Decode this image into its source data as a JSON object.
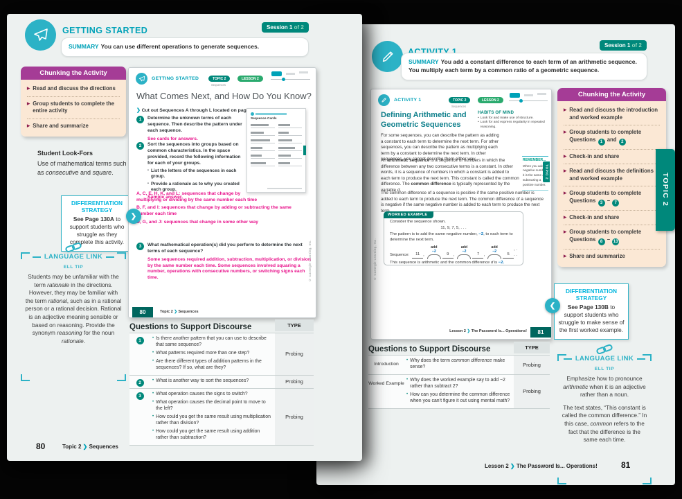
{
  "icons": {
    "chevron": "❯",
    "arrow_right": "❯",
    "arrow_left": "❮",
    "triangle": "▶",
    "bullet": "•"
  },
  "colors": {
    "teal": "#2cb2c6",
    "teal_text": "#00a2b8",
    "dark_teal": "#00887b",
    "magenta_header": "#a53c96",
    "peach": "#fbe8d5",
    "answer_magenta": "#e8128b",
    "cyan": "#00b5de",
    "blue": "#0072bc"
  },
  "left_page": {
    "header": {
      "title": "GETTING STARTED",
      "session": "Session 1",
      "session_of": "of 2",
      "summary_label": "SUMMARY",
      "summary": "You can use different operations to generate sequences."
    },
    "chunking": {
      "title": "Chunking the Activity",
      "items": [
        "Read and discuss the directions",
        "Group students to complete the entire activity",
        "Share and summarize"
      ]
    },
    "look_fors": {
      "title": "Student Look-Fors",
      "text": "Use of mathematical terms such as *consecutive* and *square*."
    },
    "differentiation": {
      "title": "DIFFERENTIATION STRATEGY",
      "page_ref": "See Page 130A",
      "text": "to support students who struggle as they complete this activity."
    },
    "language_link": {
      "title": "LANGUAGE LINK",
      "tip_label": "ELL TIP",
      "paragraphs": [
        "Students may be unfamiliar with the term *rationale* in the directions. However, they may be familiar with the term *rational*, such as in a rational person or a rational decision. Rational is an adjective meaning sensible or based on reasoning.  Provide the synonym *reasoning* for the noun *rationale*."
      ]
    },
    "student_page": {
      "header": {
        "title": "GETTING STARTED",
        "topic_pill": "TOPIC 2",
        "topic_sub": "Sequences",
        "lesson_pill": "LESSON 2"
      },
      "title": "What Comes Next, and How Do You Know?",
      "directions": "Cut out Sequences A through L located on page 59.",
      "q1": {
        "num": "1",
        "text": "Determine the unknown terms of each sequence. Then describe the pattern under each sequence.",
        "answer": "See cards for answers."
      },
      "q2": {
        "num": "2",
        "text": "Sort the sequences into groups based on common characteristics. In the space provided, record the following information for each of your groups.",
        "bullets": [
          "List the letters of the sequences in each group.",
          "Provide a rationale as to why you created each group."
        ],
        "sample_label": "Sample answer.",
        "answers": [
          "A, C, E, H, K, and L: sequences that change by multiplying or dividing by the same number each time",
          "B, F, and I: sequences that change by adding or subtracting the same number each time",
          "D, G, and J: sequences that change in some other way"
        ]
      },
      "q3": {
        "num": "3",
        "text": "What mathematical operation(s) did you perform to determine the next terms of each sequence?",
        "answer": "Some sequences required addition, subtraction, multiplication, or division by the same number each time. Some sequences involved squaring a number, operations with consecutive numbers, or switching signs each time."
      },
      "thumbnail": {
        "title": "Sequence Cards"
      },
      "footer": {
        "page": "80",
        "crumb": "Topic 2",
        "title": "Sequences"
      },
      "copyright": "© Carnegie Learning, Inc."
    },
    "discourse": {
      "title": "Questions to Support Discourse",
      "type_header": "TYPE",
      "rows": [
        {
          "label": "[1]",
          "questions": [
            "Is there another pattern that you can use to describe that same sequence?",
            "What patterns required more than one step?",
            "Are there different types of addition patterns in the sequences? If so, what are they?"
          ],
          "type": "Probing"
        },
        {
          "label": "[2]",
          "questions": [
            "What is another way to sort the sequences?"
          ],
          "type": "Probing"
        },
        {
          "label": "[3]",
          "questions": [
            "What operation causes the signs to switch?",
            "What operation causes the decimal point to move to the left?",
            "How could you get the same result using multiplication rather than division?",
            "How could you get the same result using addition rather than subtraction?"
          ],
          "type": "Probing"
        }
      ]
    },
    "footer": {
      "page": "80",
      "crumb": "Topic 2",
      "title": "Sequences"
    }
  },
  "right_page": {
    "header": {
      "title": "ACTIVITY 1",
      "session": "Session 1",
      "session_of": "of 2",
      "summary_label": "SUMMARY",
      "summary": "You add a constant difference to each term of an arithmetic sequence. You multiply each term by a common ratio of a geometric sequence."
    },
    "chunking": {
      "title": "Chunking the Activity",
      "items": [
        "Read and discuss the introduction and worked example",
        "Group students to complete Questions [1] and [2]",
        "Check-in and share",
        "Read and discuss the definitions and worked example",
        "Group students to complete Questions [3] – [7]",
        "Check-in and share",
        "Group students to complete Questions [8] – [13]",
        "Share and summarize"
      ]
    },
    "topic_tab": "TOPIC 2",
    "differentiation": {
      "title": "DIFFERENTIATION STRATEGY",
      "page_ref": "See Page 130B",
      "text": "to support students who struggle to make sense of the first worked example."
    },
    "language_link": {
      "title": "LANGUAGE LINK",
      "tip_label": "ELL TIP",
      "paragraphs": [
        "Emphasize how to pronounce *arithmetic* when it is an adjective rather than a noun.",
        "The text states, “This constant is called the common difference.” In this case, *common* refers to the fact that the difference is the same each time."
      ]
    },
    "student_page": {
      "header": {
        "title": "ACTIVITY 1",
        "topic_pill": "TOPIC 2",
        "topic_sub": "Sequences",
        "lesson_pill": "LESSON 2"
      },
      "title": "Defining Arithmetic and Geometric Sequences",
      "intro": "For some sequences, you can describe the pattern as adding a constant to each term to determine the next term. For other sequences, you can describe the pattern as multiplying each term by a constant to determine the next term. In other sequences, you cannot describe them either way",
      "habits": {
        "title": "HABITS OF MIND",
        "bullets": [
          "Look for and make use of structure.",
          "Look for and express regularity in repeated reasoning."
        ]
      },
      "def_para": "An **arithmetic sequence** is a sequence of numbers in which the difference between any two consecutive terms is a constant. In other words, it is a sequence of numbers in which a constant is added to each term to produce the next term. This constant is called the common difference. The **common difference** is typically represented by the variable *d*.",
      "remember": {
        "title": "REMEMBER...",
        "text": "When you add a negative number, it is the same as subtracting a positive number."
      },
      "topic_tab": "TOPIC 2",
      "common_para": "The common difference of a sequence is positive if the same positive number is added to each term to produce the next term. The common difference of a sequence is negative if the same negative number is added to each term to produce the next term.",
      "worked": {
        "title": "WORKED EXAMPLE",
        "line1": "Consider the sequence shown.",
        "sequence": "11, 9, 7, 5, . . .",
        "line2_pre": "The pattern is to add the same negative number, ",
        "line2_value": "−2",
        "line2_post": ", to each term to determine the next term.",
        "add_label": "add",
        "add_value": "−2",
        "seq_label": "Sequence:",
        "terms": [
          "11",
          "9",
          "7",
          "5"
        ],
        "comma": ",",
        "terms_end": ", . . .",
        "result_pre": "This sequence is arithmetic and the common difference *d* is ",
        "result_value": "−2."
      },
      "footer": {
        "crumb": "Lesson 2",
        "title": "The Password Is... Operations!",
        "page": "81"
      },
      "copyright": "© Carnegie Learning, Inc."
    },
    "discourse": {
      "title": "Questions to Support Discourse",
      "type_header": "TYPE",
      "rows": [
        {
          "label": "Introduction",
          "questions": [
            "Why does the term *common difference* make sense?"
          ],
          "type": "Probing"
        },
        {
          "label": "Worked Example",
          "questions": [
            "Why does the worked example say to add −2 rather than subtract 2?",
            "How can you determine the common difference when you can’t figure it out using mental math?"
          ],
          "type": "Probing"
        }
      ]
    },
    "footer": {
      "crumb": "Lesson 2",
      "title": "The Password Is... Operations!",
      "page": "81"
    }
  }
}
